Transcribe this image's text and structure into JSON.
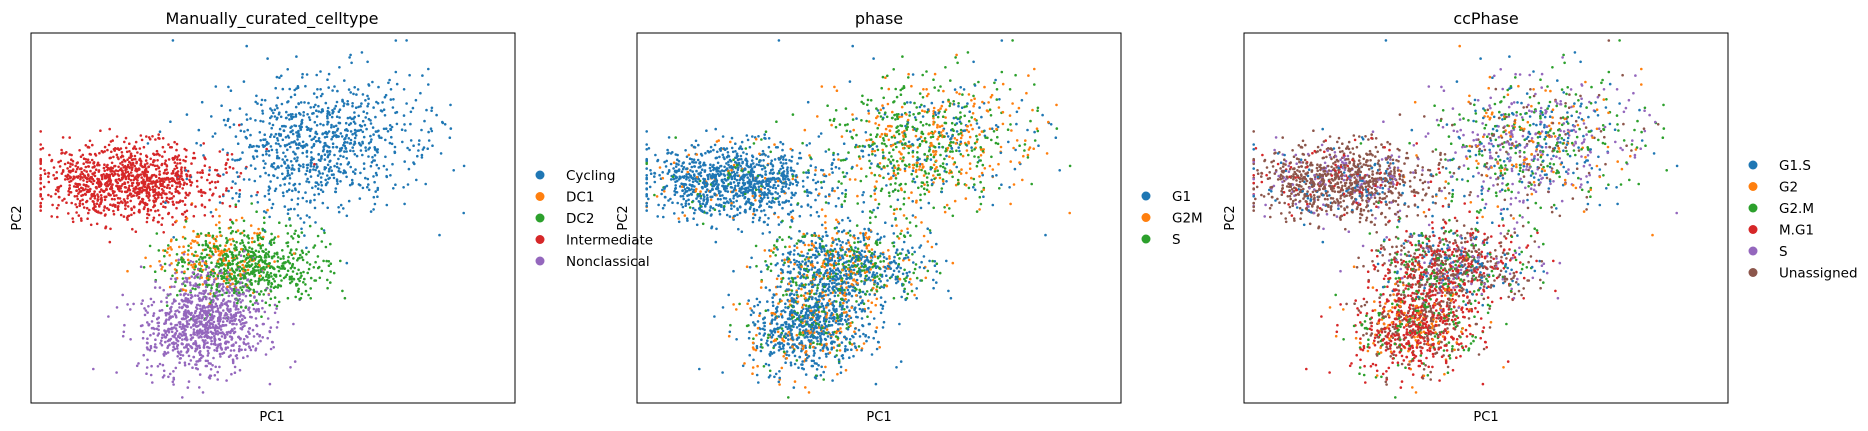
{
  "chart_data": [
    {
      "type": "scatter",
      "title": "Manually_curated_celltype",
      "xlabel": "PC1",
      "ylabel": "PC2",
      "grid": false,
      "ticks": false,
      "legend_position": "right",
      "legend": [
        {
          "name": "Cycling",
          "color": "#1f77b4"
        },
        {
          "name": "DC1",
          "color": "#ff7f0e"
        },
        {
          "name": "DC2",
          "color": "#2ca02c"
        },
        {
          "name": "Intermediate",
          "color": "#d62728"
        },
        {
          "name": "Nonclassical",
          "color": "#9467bd"
        }
      ]
    },
    {
      "type": "scatter",
      "title": "phase",
      "xlabel": "PC1",
      "ylabel": "PC2",
      "grid": false,
      "ticks": false,
      "legend_position": "right",
      "legend": [
        {
          "name": "G1",
          "color": "#1f77b4"
        },
        {
          "name": "G2M",
          "color": "#ff7f0e"
        },
        {
          "name": "S",
          "color": "#2ca02c"
        }
      ]
    },
    {
      "type": "scatter",
      "title": "ccPhase",
      "xlabel": "PC1",
      "ylabel": "PC2",
      "grid": false,
      "ticks": false,
      "legend_position": "right",
      "legend": [
        {
          "name": "G1.S",
          "color": "#1f77b4"
        },
        {
          "name": "G2",
          "color": "#ff7f0e"
        },
        {
          "name": "G2.M",
          "color": "#2ca02c"
        },
        {
          "name": "M.G1",
          "color": "#d62728"
        },
        {
          "name": "S",
          "color": "#9467bd"
        },
        {
          "name": "Unassigned",
          "color": "#8c564b"
        }
      ]
    }
  ]
}
